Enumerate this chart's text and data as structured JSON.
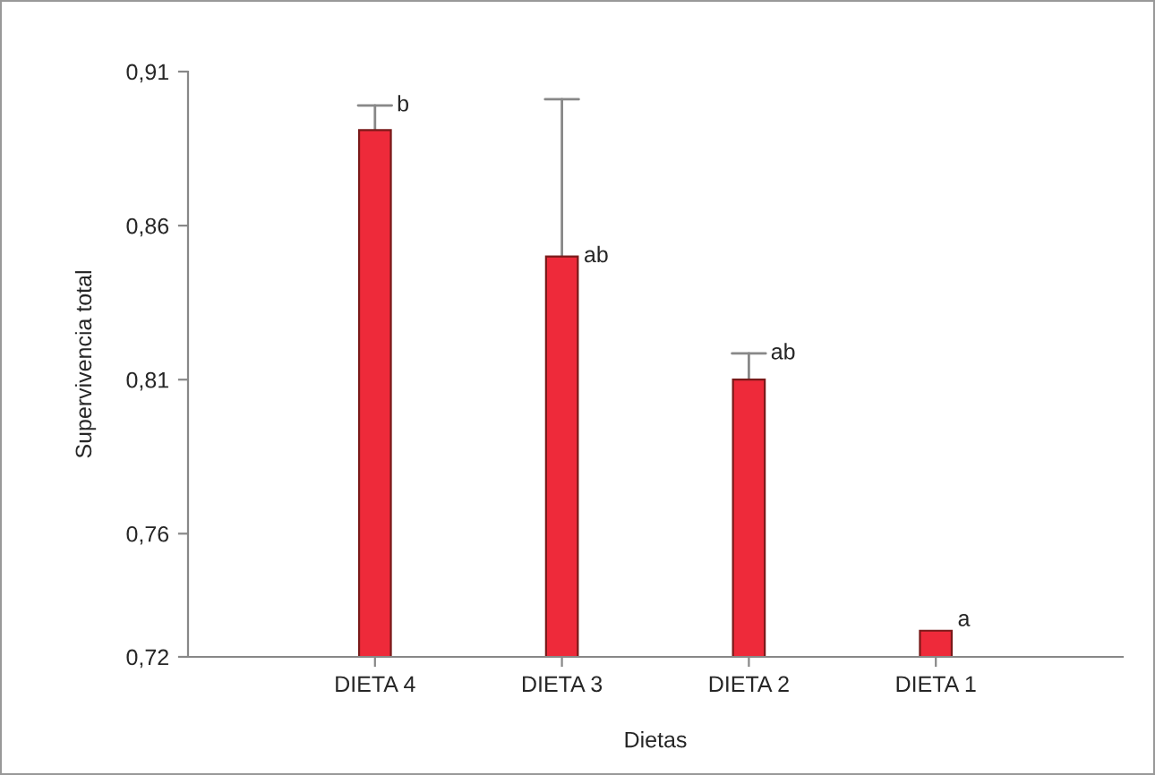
{
  "chart_data": {
    "type": "bar",
    "xlabel": "Dietas",
    "ylabel": "Supervivencia total",
    "categories": [
      "DIETA 4",
      "DIETA 3",
      "DIETA 2",
      "DIETA 1"
    ],
    "values": [
      0.891,
      0.85,
      0.81,
      0.7285
    ],
    "errors": [
      [
        0.891,
        0.899
      ],
      [
        0.85,
        0.901
      ],
      [
        0.81,
        0.8185
      ],
      null
    ],
    "color": "#ee2a3a",
    "ylim": [
      0.72,
      0.91
    ],
    "yticks": [
      {
        "value": 0.72,
        "label": "0,72"
      },
      {
        "value": 0.76,
        "label": "0,76"
      },
      {
        "value": 0.81,
        "label": "0,81"
      },
      {
        "value": 0.86,
        "label": "0,86"
      },
      {
        "value": 0.91,
        "label": "0,91"
      }
    ],
    "annotations": [
      {
        "text": "b",
        "x": "DIETA 4",
        "y": 0.899
      },
      {
        "text": "ab",
        "x": "DIETA 3",
        "y": 0.85
      },
      {
        "text": "ab",
        "x": "DIETA 2",
        "y": 0.8185
      },
      {
        "text": "a",
        "x": "DIETA 1",
        "y": 0.7285
      }
    ],
    "grid": false,
    "legend": false
  }
}
